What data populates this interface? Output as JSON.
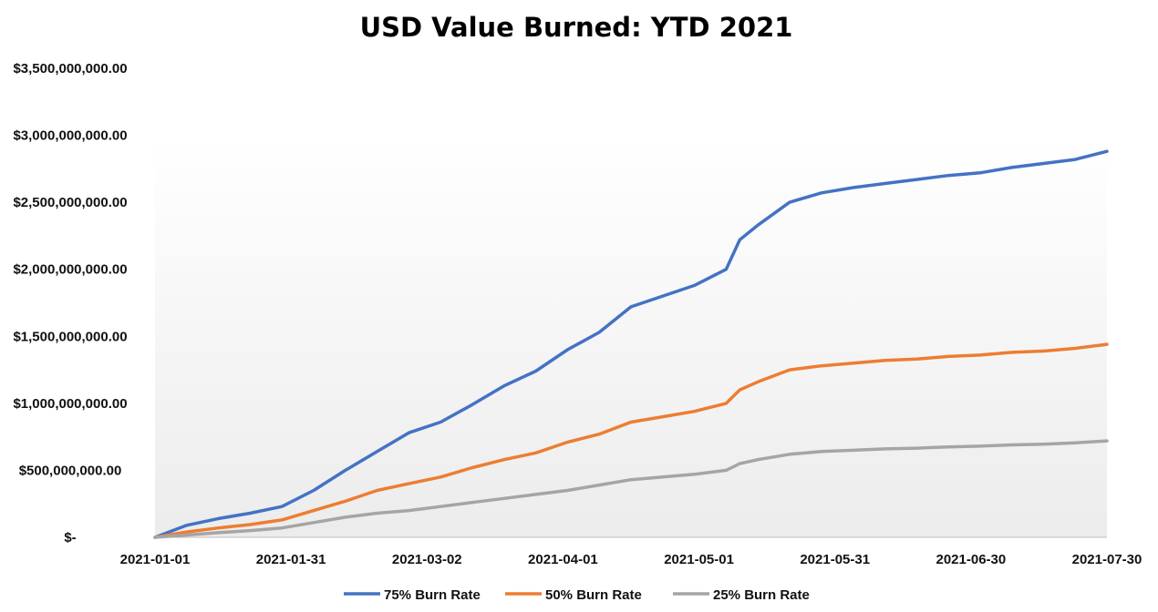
{
  "chart_data": {
    "type": "line",
    "title": "USD Value Burned: YTD 2021",
    "xlabel": "",
    "ylabel": "",
    "ylim": [
      0,
      3500000000
    ],
    "y_ticks": [
      0,
      500000000,
      1000000000,
      1500000000,
      2000000000,
      2500000000,
      3000000000,
      3500000000
    ],
    "y_tick_labels": [
      "$-",
      "$500,000,000.00",
      "$1,000,000,000.00",
      "$1,500,000,000.00",
      "$2,000,000,000.00",
      "$2,500,000,000.00",
      "$3,000,000,000.00",
      "$3,500,000,000.00"
    ],
    "xlim": [
      "2021-01-01",
      "2021-07-30"
    ],
    "x_tick_labels": [
      "2021-01-01",
      "2021-01-31",
      "2021-03-02",
      "2021-04-01",
      "2021-05-01",
      "2021-05-31",
      "2021-06-30",
      "2021-07-30"
    ],
    "grid": false,
    "legend_position": "bottom",
    "x": [
      "2021-01-01",
      "2021-01-08",
      "2021-01-15",
      "2021-01-22",
      "2021-01-29",
      "2021-02-05",
      "2021-02-12",
      "2021-02-19",
      "2021-02-26",
      "2021-03-05",
      "2021-03-12",
      "2021-03-19",
      "2021-03-26",
      "2021-04-02",
      "2021-04-09",
      "2021-04-16",
      "2021-04-23",
      "2021-04-30",
      "2021-05-07",
      "2021-05-10",
      "2021-05-14",
      "2021-05-21",
      "2021-05-28",
      "2021-06-04",
      "2021-06-11",
      "2021-06-18",
      "2021-06-25",
      "2021-07-02",
      "2021-07-09",
      "2021-07-16",
      "2021-07-23",
      "2021-07-30"
    ],
    "series": [
      {
        "name": "75% Burn Rate",
        "color": "#4472c4",
        "values": [
          0,
          90000000,
          140000000,
          180000000,
          230000000,
          350000000,
          500000000,
          640000000,
          780000000,
          860000000,
          990000000,
          1130000000,
          1240000000,
          1400000000,
          1530000000,
          1720000000,
          1800000000,
          1880000000,
          2000000000,
          2220000000,
          2330000000,
          2500000000,
          2570000000,
          2610000000,
          2640000000,
          2670000000,
          2700000000,
          2720000000,
          2760000000,
          2790000000,
          2820000000,
          2880000000
        ]
      },
      {
        "name": "50% Burn Rate",
        "color": "#ed7d31",
        "values": [
          0,
          40000000,
          70000000,
          95000000,
          130000000,
          200000000,
          270000000,
          350000000,
          400000000,
          450000000,
          520000000,
          580000000,
          630000000,
          710000000,
          770000000,
          860000000,
          900000000,
          940000000,
          1000000000,
          1100000000,
          1160000000,
          1250000000,
          1280000000,
          1300000000,
          1320000000,
          1330000000,
          1350000000,
          1360000000,
          1380000000,
          1390000000,
          1410000000,
          1440000000
        ]
      },
      {
        "name": "25% Burn Rate",
        "color": "#a5a5a5",
        "values": [
          0,
          17000000,
          35000000,
          50000000,
          70000000,
          110000000,
          150000000,
          180000000,
          200000000,
          230000000,
          260000000,
          290000000,
          320000000,
          350000000,
          390000000,
          430000000,
          450000000,
          470000000,
          500000000,
          550000000,
          580000000,
          620000000,
          640000000,
          650000000,
          660000000,
          665000000,
          675000000,
          680000000,
          690000000,
          695000000,
          705000000,
          720000000
        ]
      }
    ]
  }
}
